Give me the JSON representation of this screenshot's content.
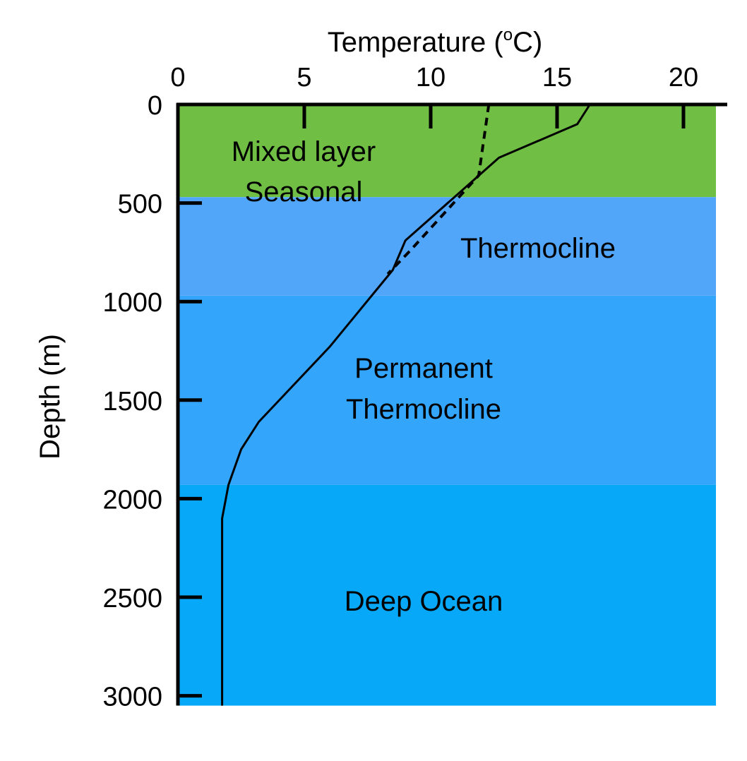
{
  "chart_data": {
    "type": "line",
    "x_axis": {
      "label_prefix": "Temperature (",
      "label_degree": "o",
      "label_suffix": "C)",
      "position": "top",
      "range": [
        0,
        21.5
      ],
      "ticks": [
        0,
        5,
        10,
        15,
        20
      ],
      "tick_labels": [
        "0",
        "5",
        "10",
        "15",
        "20"
      ]
    },
    "y_axis": {
      "label": "Depth (m)",
      "inverted": true,
      "range": [
        0,
        3050
      ],
      "ticks": [
        0,
        500,
        1000,
        1500,
        2000,
        2500,
        3000
      ],
      "tick_labels": [
        "0",
        "500",
        "1000",
        "1500",
        "2000",
        "2500",
        "3000"
      ]
    },
    "zones": [
      {
        "lines": [
          "Mixed layer",
          "Seasonal"
        ],
        "depth_from": 0,
        "depth_to": 470,
        "color": "#70bf44"
      },
      {
        "lines": [
          "Thermocline"
        ],
        "depth_from": 470,
        "depth_to": 970,
        "color": "#52a6fa"
      },
      {
        "lines": [
          "Permanent",
          "Thermocline"
        ],
        "depth_from": 970,
        "depth_to": 1930,
        "color": "#33a5fb"
      },
      {
        "lines": [
          "Deep Ocean"
        ],
        "depth_from": 1930,
        "depth_to": 3050,
        "color": "#07a8f8"
      }
    ],
    "series": [
      {
        "style": "solid",
        "color": "#000000",
        "points": [
          [
            16.3,
            0
          ],
          [
            15.8,
            100
          ],
          [
            12.7,
            270
          ],
          [
            9.0,
            690
          ],
          [
            8.5,
            840
          ],
          [
            6.0,
            1230
          ],
          [
            3.2,
            1610
          ],
          [
            2.5,
            1750
          ],
          [
            2.0,
            1930
          ],
          [
            1.75,
            2100
          ],
          [
            1.75,
            2200
          ],
          [
            1.75,
            3050
          ]
        ]
      },
      {
        "style": "dashed",
        "color": "#000000",
        "points": [
          [
            12.3,
            0
          ],
          [
            11.9,
            360
          ],
          [
            9.2,
            740
          ],
          [
            8.3,
            860
          ]
        ]
      }
    ]
  }
}
